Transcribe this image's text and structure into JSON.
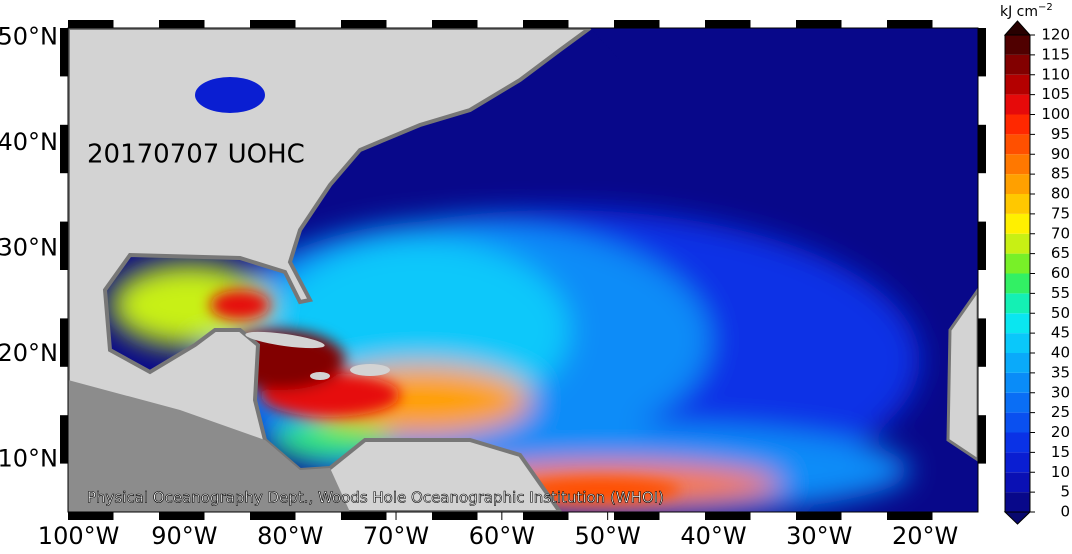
{
  "map": {
    "title": "20170707 UOHC",
    "credit": "Physical Oceanography Dept., Woods Hole Oceanographic Institution (WHOI)",
    "unit": "kJ cm",
    "unit_exponent": "−2",
    "lonlim": [
      -101,
      -15
    ],
    "latlim": [
      5,
      50.9
    ],
    "lon_ticks": [
      {
        "value": -100,
        "label": "100°W"
      },
      {
        "value": -90,
        "label": "90°W"
      },
      {
        "value": -80,
        "label": "80°W"
      },
      {
        "value": -70,
        "label": "70°W"
      },
      {
        "value": -60,
        "label": "60°W"
      },
      {
        "value": -50,
        "label": "50°W"
      },
      {
        "value": -40,
        "label": "40°W"
      },
      {
        "value": -30,
        "label": "30°W"
      },
      {
        "value": -20,
        "label": "20°W"
      }
    ],
    "lat_ticks": [
      {
        "value": 10,
        "label": "10°N"
      },
      {
        "value": 20,
        "label": "20°N"
      },
      {
        "value": 30,
        "label": "30°N"
      },
      {
        "value": 40,
        "label": "40°N"
      },
      {
        "value": 50,
        "label": "50°N"
      }
    ],
    "colorbar": {
      "lim": [
        0,
        120
      ],
      "ticks": [
        0,
        5,
        10,
        15,
        20,
        25,
        30,
        35,
        40,
        45,
        50,
        55,
        60,
        65,
        70,
        75,
        80,
        85,
        90,
        95,
        100,
        105,
        110,
        115,
        120
      ],
      "colors": [
        "#08088a",
        "#0a10b4",
        "#0a1ed2",
        "#0a32e6",
        "#0a50f0",
        "#0a6ef5",
        "#0a8cf8",
        "#0aaafa",
        "#0ac8fa",
        "#0ae6f0",
        "#14f0b4",
        "#32f064",
        "#78f028",
        "#c8f014",
        "#fff000",
        "#ffc800",
        "#ffa000",
        "#ff7800",
        "#ff5000",
        "#ff2800",
        "#e60a0a",
        "#b40000",
        "#820000",
        "#500000"
      ],
      "over_color": "#280000",
      "under_color": "#08086e"
    }
  }
}
